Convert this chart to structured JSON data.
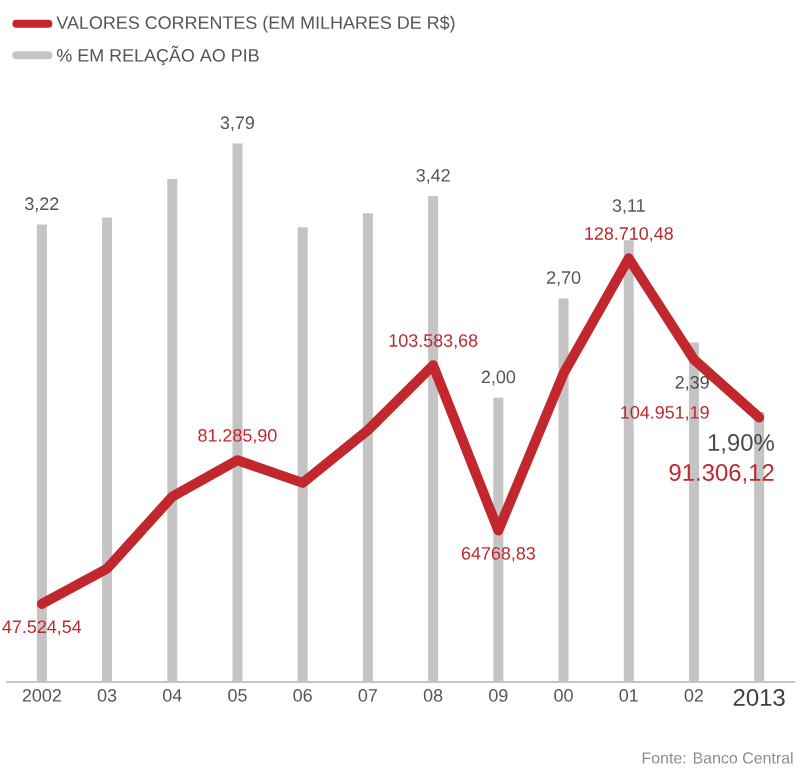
{
  "chart_data": {
    "type": "bar",
    "categories": [
      "2002",
      "03",
      "04",
      "05",
      "06",
      "07",
      "08",
      "09",
      "00",
      "01",
      "02",
      "2013"
    ],
    "series": [
      {
        "name": "% EM RELAÇÃO AO PIB",
        "color": "#c4c4c4",
        "values": [
          3.22,
          3.27,
          3.54,
          3.79,
          3.2,
          3.3,
          3.42,
          2.0,
          2.7,
          3.11,
          2.39,
          1.9
        ],
        "value_labels": [
          "3,22",
          null,
          null,
          "3,79",
          null,
          null,
          "3,42",
          "2,00",
          "2,70",
          "3,11",
          "2,39",
          "1,90%"
        ]
      },
      {
        "name": "VALORES CORRENTES (EM MILHARES DE R$)",
        "type": "line",
        "axis": "y2",
        "color": "#c1272d",
        "values": [
          47524.54,
          55800,
          72750,
          81285.9,
          75960,
          88350,
          103583.68,
          64768.83,
          101650,
          128710.48,
          104951.19,
          91306.12
        ],
        "value_labels": [
          "47.524,54",
          null,
          null,
          "81.285,90",
          null,
          null,
          "103.583,68",
          "64768,83",
          null,
          "128.710,48",
          "104.951,19",
          "91.306,12"
        ]
      }
    ],
    "tick_labels": "x",
    "legend": "top left",
    "annotations": [
      "Fonte: Banco Central"
    ]
  }
}
